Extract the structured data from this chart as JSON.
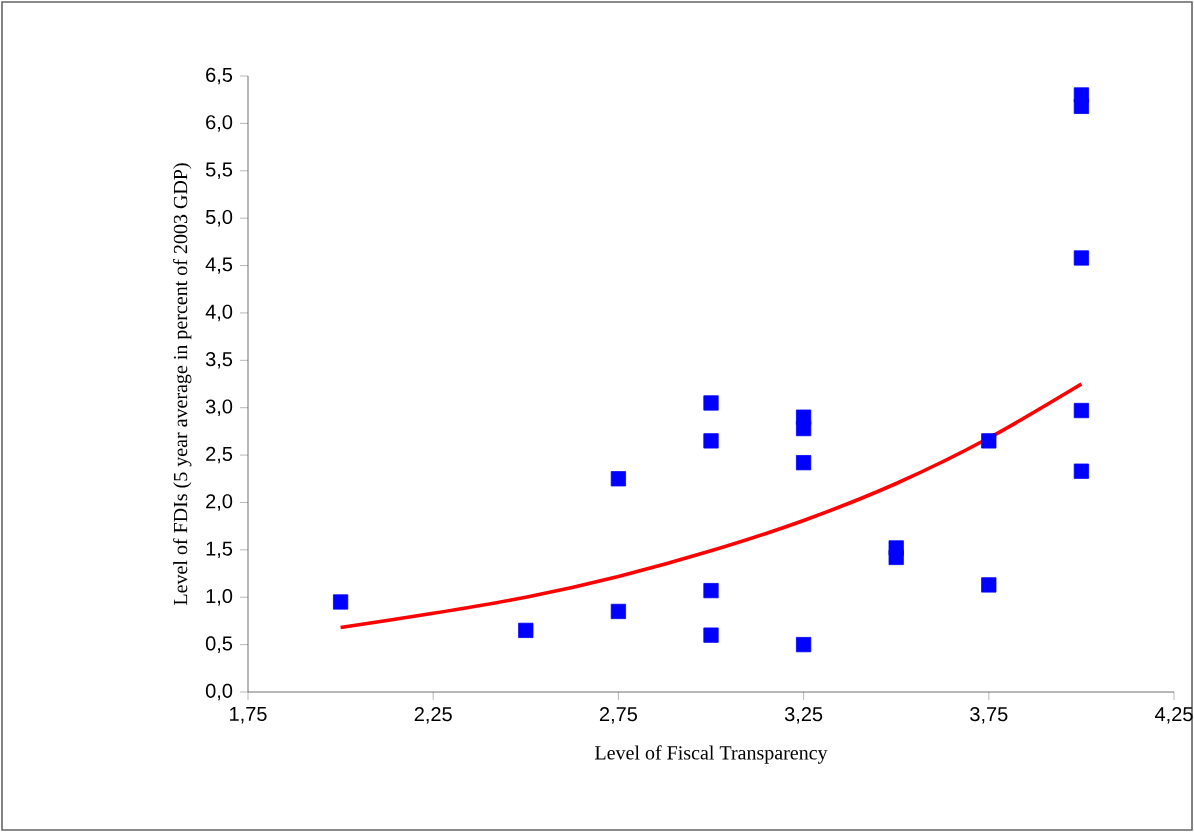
{
  "chart_data": {
    "type": "scatter",
    "xlabel": "Level of Fiscal Transparency",
    "ylabel": "Level of FDIs (5 year average in percent of 2003 GDP)",
    "marker": "square",
    "xlim": [
      1.75,
      4.25
    ],
    "ylim": [
      0,
      6.5
    ],
    "xticks": [
      {
        "value": 1.75,
        "label": "1,75"
      },
      {
        "value": 2.25,
        "label": "2,25"
      },
      {
        "value": 2.75,
        "label": "2,75"
      },
      {
        "value": 3.25,
        "label": "3,25"
      },
      {
        "value": 3.75,
        "label": "3,75"
      },
      {
        "value": 4.25,
        "label": "4,25"
      }
    ],
    "yticks": [
      {
        "value": 0,
        "label": "0,0"
      },
      {
        "value": 0.5,
        "label": "0,5"
      },
      {
        "value": 1,
        "label": "1,0"
      },
      {
        "value": 1.5,
        "label": "1,5"
      },
      {
        "value": 2,
        "label": "2,0"
      },
      {
        "value": 2.5,
        "label": "2,5"
      },
      {
        "value": 3,
        "label": "3,0"
      },
      {
        "value": 3.5,
        "label": "3,5"
      },
      {
        "value": 4,
        "label": "4,0"
      },
      {
        "value": 4.5,
        "label": "4,5"
      },
      {
        "value": 5,
        "label": "5,0"
      },
      {
        "value": 5.5,
        "label": "5,5"
      },
      {
        "value": 6,
        "label": "6,0"
      },
      {
        "value": 6.5,
        "label": "6,5"
      }
    ],
    "series": [
      {
        "color": "#0000ff",
        "x": [
          2.0,
          2.5,
          2.75,
          2.75,
          3.0,
          3.0,
          3.0,
          3.0,
          3.25,
          3.25,
          3.25,
          3.25,
          3.5,
          3.5,
          3.75,
          3.75,
          4.0,
          4.0,
          4.0,
          4.0,
          4.0
        ],
        "values": [
          0.95,
          0.65,
          2.25,
          0.85,
          3.05,
          2.65,
          1.07,
          0.6,
          2.9,
          2.78,
          2.42,
          0.5,
          1.52,
          1.42,
          2.65,
          1.13,
          6.3,
          6.18,
          4.58,
          2.97,
          2.33
        ]
      },
      {
        "type": "line",
        "color": "#ff0000",
        "marker": "none",
        "x": [
          2.0,
          2.25,
          2.5,
          2.75,
          3.0,
          3.25,
          3.5,
          3.75,
          4.0
        ],
        "values": [
          0.68,
          0.83,
          1.0,
          1.22,
          1.49,
          1.81,
          2.2,
          2.68,
          3.25
        ]
      }
    ]
  }
}
